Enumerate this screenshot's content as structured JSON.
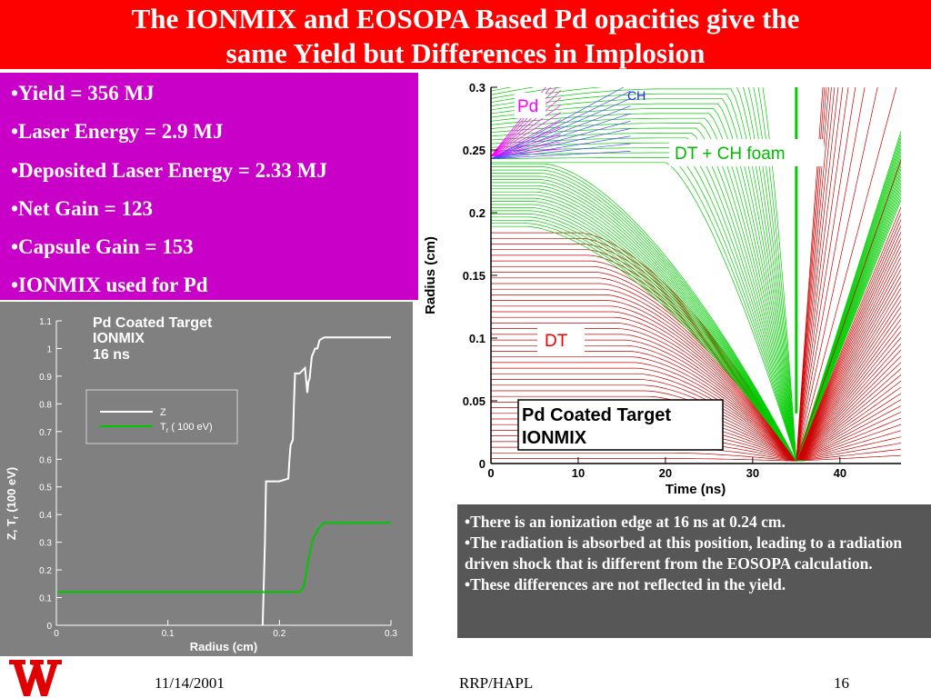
{
  "slide": {
    "title_line1": "The IONMIX and EOSOPA Based Pd opacities give the",
    "title_line2": "same Yield but Differences in Implosion",
    "bullets": [
      "•Yield = 356 MJ",
      "•Laser Energy = 2.9 MJ",
      "•Deposited Laser Energy = 2.33 MJ",
      "•Net Gain = 123",
      "•Capsule Gain = 153",
      "•IONMIX used for Pd"
    ],
    "notes": [
      "•There is an ionization edge at 16 ns at 0.24 cm.",
      "•The radiation is absorbed at this position, leading to a radiation driven shock that is different from the EOSOPA calculation.",
      "•These differences are not reflected in the yield."
    ],
    "footer": {
      "date": "11/14/2001",
      "center": "RRP/HAPL",
      "page": "16"
    },
    "colors": {
      "title_bg": "#fd0000",
      "bullets_bg": "#c800c8",
      "notes_bg": "#575757",
      "plot_bg": "#808080"
    }
  },
  "chart_data": [
    {
      "type": "line",
      "title_lines": [
        "Pd Coated Target",
        "IONMIX",
        "16 ns"
      ],
      "xlabel": "Radius (cm)",
      "ylabel": "Z, T",
      "ylabel_sub": "r",
      "ylabel_unit": "(100 eV)",
      "xlim": [
        0,
        0.3
      ],
      "ylim": [
        0,
        1.1
      ],
      "xticks": [
        "0",
        "0.1",
        "0.2",
        "0.3"
      ],
      "yticks": [
        "0",
        "0.1",
        "0.2",
        "0.3",
        "0.4",
        "0.5",
        "0.6",
        "0.7",
        "0.8",
        "0.9",
        "1",
        "1.1"
      ],
      "legend": {
        "z_label": "Z",
        "tr_label": "T",
        "tr_sub": "r",
        "tr_suffix": "( 100 eV)"
      },
      "series": [
        {
          "name": "Z",
          "color": "#ffffff",
          "x": [
            0.185,
            0.187,
            0.188,
            0.2,
            0.208,
            0.209,
            0.21,
            0.211,
            0.212,
            0.213,
            0.214,
            0.215,
            0.218,
            0.223,
            0.225,
            0.226,
            0.227,
            0.229,
            0.232,
            0.234,
            0.236,
            0.24,
            0.3
          ],
          "y": [
            0,
            0.3,
            0.52,
            0.52,
            0.53,
            0.6,
            0.65,
            0.66,
            0.67,
            0.8,
            0.91,
            0.91,
            0.91,
            0.93,
            0.84,
            0.88,
            0.89,
            0.97,
            1.0,
            1.0,
            1.03,
            1.04,
            1.04
          ]
        },
        {
          "name": "T",
          "color": "#00c800",
          "x": [
            0,
            0.218,
            0.222,
            0.226,
            0.23,
            0.235,
            0.24,
            0.3
          ],
          "y": [
            0.12,
            0.12,
            0.14,
            0.24,
            0.31,
            0.35,
            0.37,
            0.37
          ]
        }
      ]
    },
    {
      "type": "line",
      "xlabel": "Time (ns)",
      "ylabel": "Radius (cm)",
      "xlim": [
        0,
        47
      ],
      "ylim": [
        0,
        0.3
      ],
      "xticks": [
        "0",
        "10",
        "20",
        "30",
        "40"
      ],
      "yticks": [
        "0",
        "0.05",
        "0.1",
        "0.15",
        "0.2",
        "0.25",
        "0.3"
      ],
      "labels": {
        "pd": "Pd",
        "ch": "CH",
        "foam": "DT + CH foam",
        "dt": "DT"
      },
      "box_lines": [
        "Pd Coated Target",
        "IONMIX"
      ],
      "colors": {
        "pd": "#ff00ff",
        "ch": "#4a4aff",
        "foam": "#00cc00",
        "dt": "#cc0000"
      },
      "implosion": {
        "stagnation_time": 35,
        "min_radius": 0.002,
        "pd_outer": [
          0.3,
          0.245
        ],
        "ch_outer": [
          0.29,
          0.243
        ],
        "foam_outer": [
          0.3,
          0.24
        ],
        "dt_outer": 0.187
      }
    }
  ]
}
